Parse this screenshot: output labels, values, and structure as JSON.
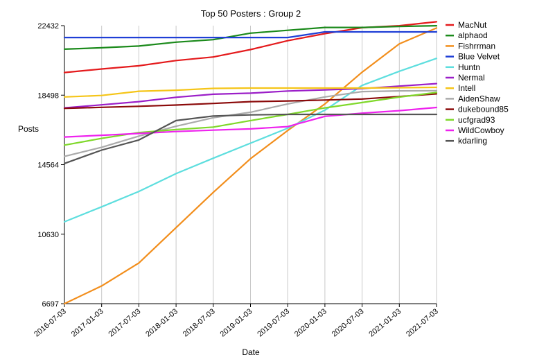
{
  "chart_data": {
    "type": "line",
    "title": "Top 50 Posters : Group 2",
    "xlabel": "Date",
    "ylabel": "Posts",
    "x": [
      "2016-07-03",
      "2017-01-03",
      "2017-07-03",
      "2018-01-03",
      "2018-07-03",
      "2019-01-03",
      "2019-07-03",
      "2020-01-03",
      "2020-07-03",
      "2021-01-03",
      "2021-07-03"
    ],
    "yticks": [
      6697,
      10630,
      14564,
      18498,
      22432
    ],
    "ylim": [
      6697,
      22432
    ],
    "grid": "vertical",
    "legend": "right",
    "series": [
      {
        "name": "MacNut",
        "color": "#e41a1c",
        "values": [
          19780,
          19980,
          20160,
          20460,
          20660,
          21080,
          21580,
          21980,
          22320,
          22430,
          22650
        ]
      },
      {
        "name": "alphaod",
        "color": "#1b8a1b",
        "values": [
          21100,
          21180,
          21280,
          21500,
          21640,
          22010,
          22170,
          22330,
          22330,
          22390,
          22430
        ]
      },
      {
        "name": "Fishrrman",
        "color": "#f28e1c",
        "values": [
          6697,
          7700,
          9000,
          11000,
          13000,
          14900,
          16500,
          18000,
          19800,
          21400,
          22300
        ]
      },
      {
        "name": "Blue Velvet",
        "color": "#1f3fd6",
        "values": [
          21760,
          21760,
          21760,
          21760,
          21760,
          21760,
          21760,
          22080,
          22080,
          22080,
          22080
        ]
      },
      {
        "name": "Huntn",
        "color": "#5ddede",
        "values": [
          11330,
          12180,
          13050,
          14060,
          14930,
          15780,
          16630,
          17650,
          19050,
          19850,
          20580
        ]
      },
      {
        "name": "Nermal",
        "color": "#9b1ec8",
        "values": [
          17780,
          17950,
          18130,
          18380,
          18550,
          18610,
          18730,
          18800,
          18870,
          19010,
          19150
        ]
      },
      {
        "name": "Intell",
        "color": "#f5c518",
        "values": [
          18400,
          18480,
          18720,
          18780,
          18880,
          18900,
          18900,
          18900,
          18900,
          18920,
          18940
        ]
      },
      {
        "name": "AidenShaw",
        "color": "#aaaaaa",
        "values": [
          15030,
          15550,
          16180,
          16740,
          17220,
          17530,
          18000,
          18400,
          18700,
          18740,
          18750
        ]
      },
      {
        "name": "dukebound85",
        "color": "#8b0a0a",
        "values": [
          17750,
          17810,
          17870,
          17940,
          18030,
          18130,
          18170,
          18220,
          18280,
          18420,
          18570
        ]
      },
      {
        "name": "ucfgrad93",
        "color": "#7fd82a",
        "values": [
          15670,
          16050,
          16380,
          16550,
          16690,
          17060,
          17410,
          17780,
          18080,
          18390,
          18650
        ]
      },
      {
        "name": "WildCowboy",
        "color": "#ee22ee",
        "values": [
          16130,
          16230,
          16330,
          16440,
          16520,
          16590,
          16720,
          17300,
          17480,
          17620,
          17800
        ]
      },
      {
        "name": "kdarling",
        "color": "#555555",
        "values": [
          14630,
          15390,
          15960,
          17060,
          17320,
          17380,
          17410,
          17410,
          17410,
          17410,
          17410
        ]
      }
    ]
  }
}
